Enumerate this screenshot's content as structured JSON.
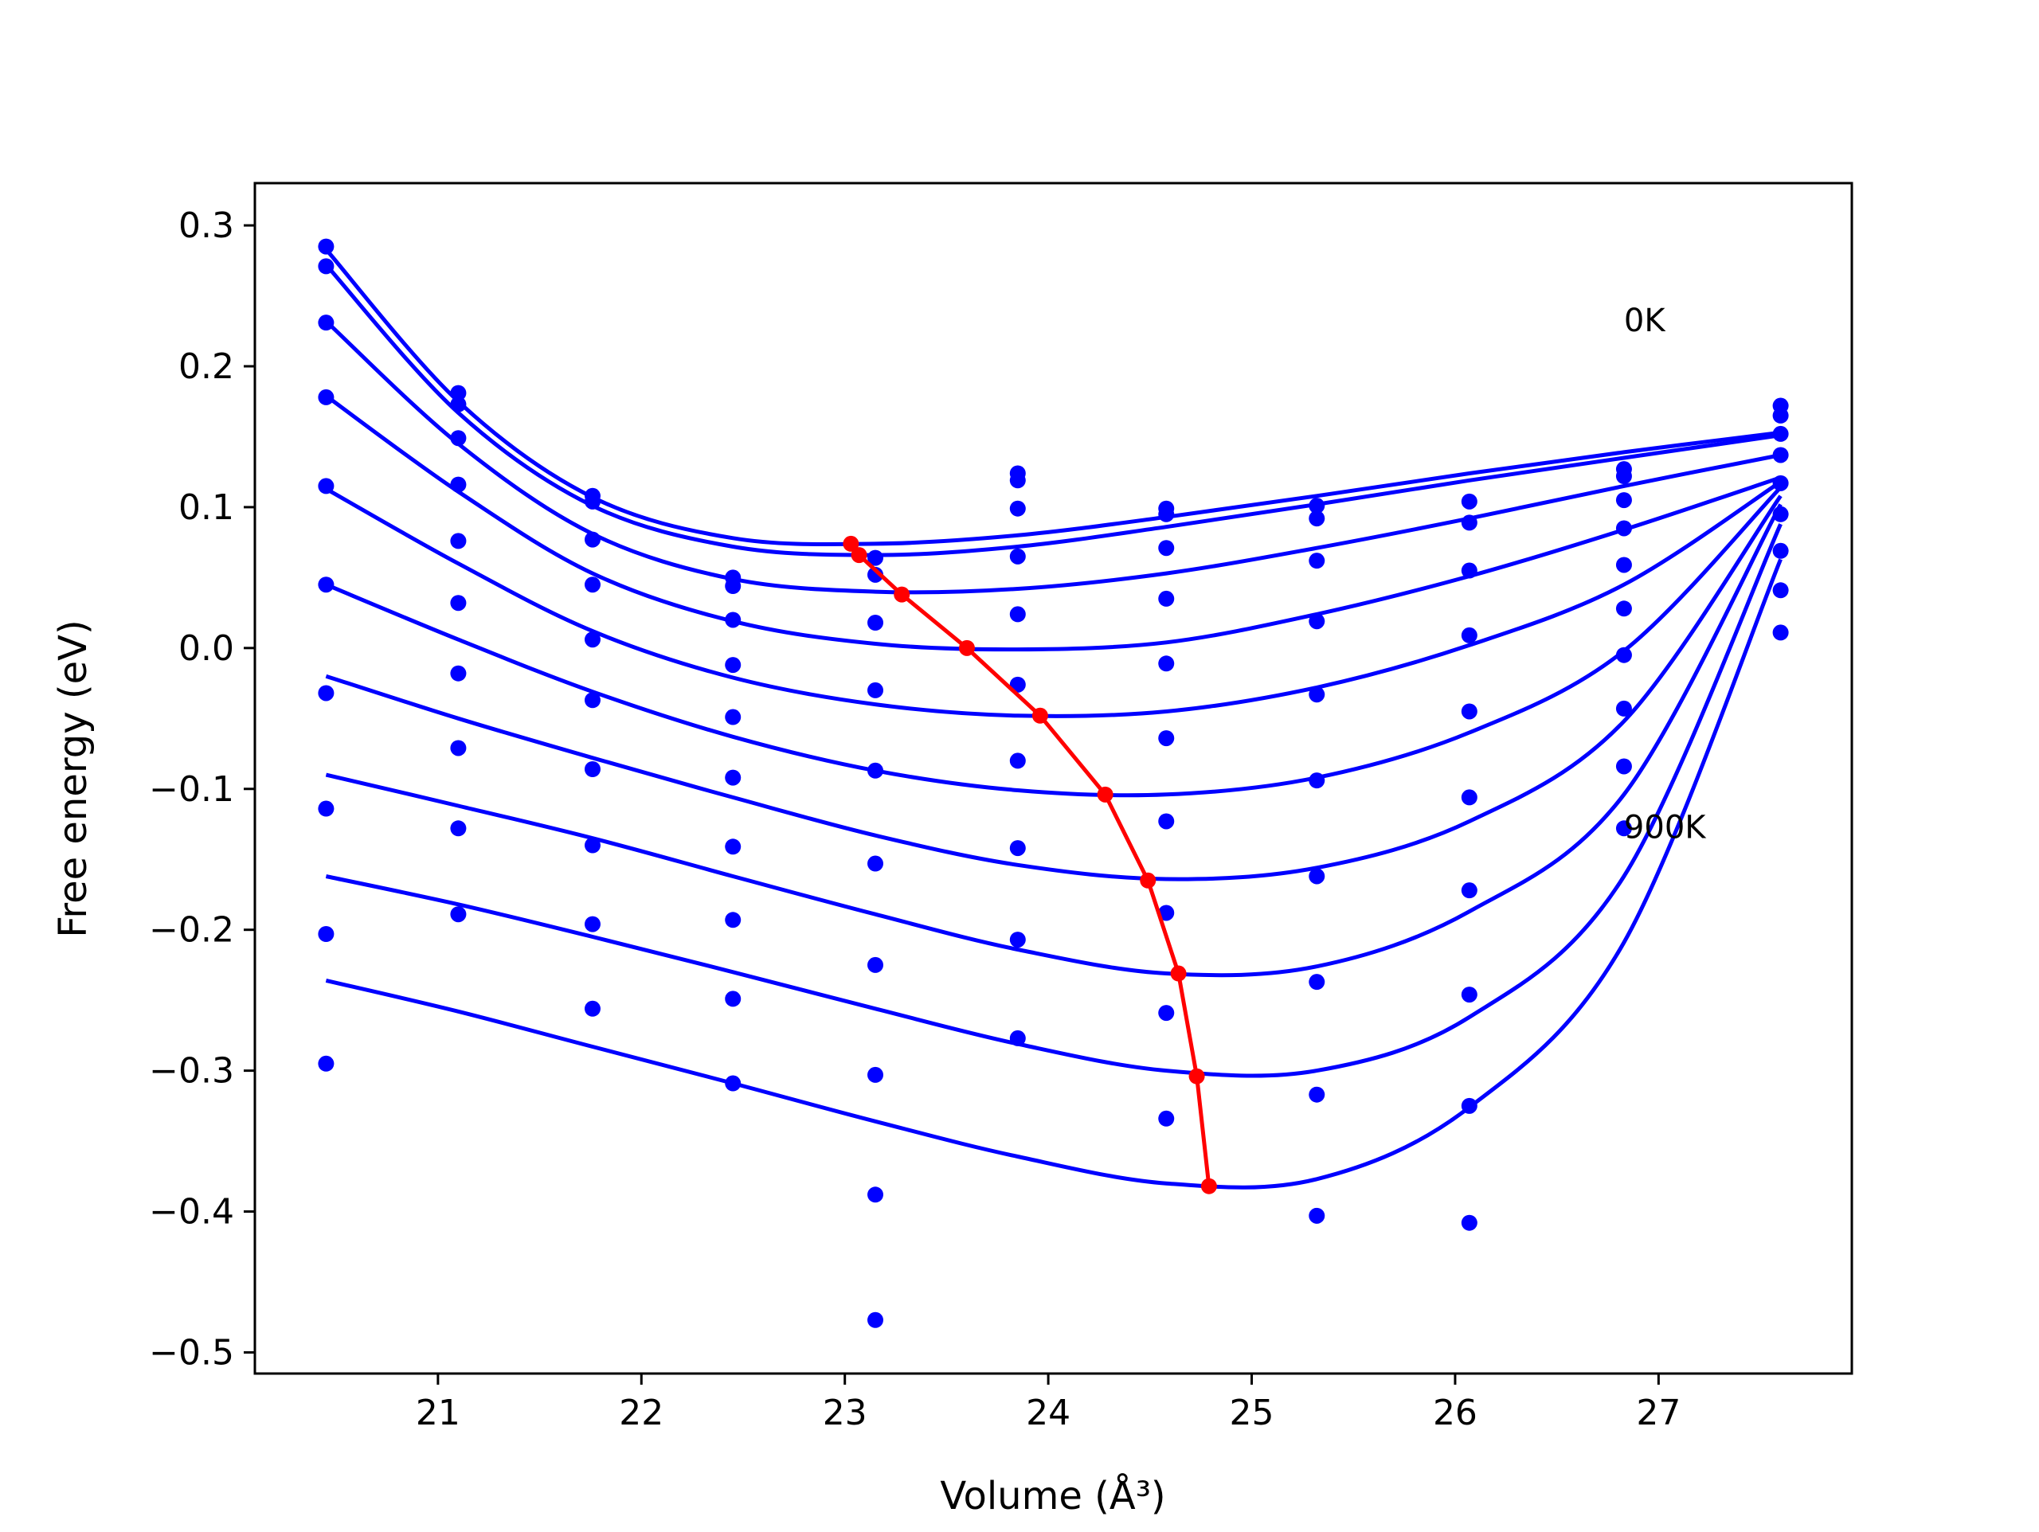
{
  "chart_data": {
    "type": "line",
    "xlabel": "Volume (Å³)",
    "ylabel": "Free energy (eV)",
    "xlim": [
      20.1,
      27.95
    ],
    "ylim": [
      -0.515,
      0.33
    ],
    "xticks": [
      21,
      22,
      23,
      24,
      25,
      26,
      27
    ],
    "yticks": [
      0.3,
      0.2,
      0.1,
      0.0,
      -0.1,
      -0.2,
      -0.3,
      -0.4,
      -0.5
    ],
    "xtick_labels": [
      "21",
      "22",
      "23",
      "24",
      "25",
      "26",
      "27"
    ],
    "ytick_labels": [
      "0.3",
      "0.2",
      "0.1",
      "0.0",
      "−0.1",
      "−0.2",
      "−0.3",
      "−0.4",
      "−0.5"
    ],
    "grid": false,
    "annotations": [
      {
        "text": "0K",
        "x": 26.83,
        "y": 0.225
      },
      {
        "text": "900K",
        "x": 26.83,
        "y": -0.135
      }
    ],
    "series_color": "#0000ff",
    "minimum_color": "#ff0000",
    "volumes": [
      20.45,
      21.1,
      21.76,
      22.45,
      23.15,
      23.85,
      24.58,
      25.32,
      26.07,
      26.83,
      27.6
    ],
    "series": [
      {
        "values": [
          0.285,
          0.181,
          0.108,
          0.05,
          0.064,
          0.124,
          0.099,
          0.101,
          0.104,
          0.127,
          0.172
        ]
      },
      {
        "values": [
          0.271,
          0.173,
          0.104,
          0.044,
          0.052,
          0.119,
          0.095,
          0.092,
          0.089,
          0.122,
          0.165
        ]
      },
      {
        "values": [
          0.231,
          0.149,
          0.077,
          0.02,
          0.018,
          0.099,
          0.071,
          0.062,
          0.055,
          0.105,
          0.152
        ]
      },
      {
        "values": [
          0.178,
          0.116,
          0.045,
          -0.012,
          -0.03,
          0.065,
          0.035,
          0.019,
          0.009,
          0.085,
          0.137
        ]
      },
      {
        "values": [
          0.115,
          0.076,
          0.006,
          -0.049,
          -0.087,
          0.024,
          -0.011,
          -0.033,
          -0.045,
          0.059,
          0.117
        ]
      },
      {
        "values": [
          0.045,
          0.032,
          -0.037,
          -0.092,
          -0.153,
          -0.026,
          -0.064,
          -0.094,
          -0.106,
          0.028,
          0.095
        ]
      },
      {
        "values": [
          -0.032,
          -0.018,
          -0.086,
          -0.141,
          -0.225,
          -0.08,
          -0.123,
          -0.162,
          -0.172,
          -0.005,
          0.069
        ]
      },
      {
        "values": [
          -0.114,
          -0.071,
          -0.14,
          -0.193,
          -0.303,
          -0.142,
          -0.188,
          -0.237,
          -0.246,
          -0.043,
          0.041
        ]
      },
      {
        "values": [
          -0.203,
          -0.128,
          -0.196,
          -0.249,
          -0.388,
          -0.207,
          -0.259,
          -0.317,
          -0.325,
          -0.084,
          0.011
        ]
      },
      {
        "values": [
          -0.295,
          -0.189,
          -0.256,
          -0.309,
          -0.477,
          -0.277,
          -0.334,
          -0.403,
          -0.408,
          -0.128,
          null
        ]
      }
    ],
    "fit_curves": [
      {
        "x": [
          20.45,
          21.1,
          21.76,
          22.45,
          23.15,
          23.85,
          24.58,
          25.32,
          26.07,
          26.83,
          27.6
        ],
        "y": [
          0.283,
          0.175,
          0.107,
          0.078,
          0.074,
          0.08,
          0.093,
          0.108,
          0.124,
          0.139,
          0.153
        ]
      },
      {
        "x": [
          20.45,
          21.1,
          21.76,
          22.45,
          23.15,
          23.85,
          24.58,
          25.32,
          26.07,
          26.83,
          27.6
        ],
        "y": [
          0.272,
          0.167,
          0.101,
          0.072,
          0.066,
          0.072,
          0.086,
          0.102,
          0.119,
          0.135,
          0.151
        ]
      },
      {
        "x": [
          20.45,
          21.1,
          21.76,
          22.45,
          23.15,
          23.85,
          24.58,
          25.32,
          26.07,
          26.83,
          27.6
        ],
        "y": [
          0.232,
          0.145,
          0.081,
          0.049,
          0.04,
          0.042,
          0.053,
          0.071,
          0.092,
          0.115,
          0.137
        ]
      },
      {
        "x": [
          20.45,
          21.1,
          21.76,
          22.45,
          23.15,
          23.85,
          24.58,
          25.32,
          26.07,
          26.83,
          27.6
        ],
        "y": [
          0.179,
          0.111,
          0.053,
          0.019,
          0.003,
          -0.001,
          0.004,
          0.024,
          0.051,
          0.084,
          0.121
        ]
      },
      {
        "x": [
          20.45,
          21.1,
          21.76,
          22.45,
          23.15,
          23.85,
          24.58,
          25.32,
          26.07,
          26.83,
          27.6
        ],
        "y": [
          0.113,
          0.06,
          0.012,
          -0.021,
          -0.04,
          -0.048,
          -0.045,
          -0.028,
          0.002,
          0.045,
          0.118
        ]
      },
      {
        "x": [
          20.45,
          21.1,
          21.76,
          22.45,
          23.15,
          23.85,
          24.58,
          25.32,
          26.07,
          26.83,
          27.6
        ],
        "y": [
          0.045,
          0.006,
          -0.031,
          -0.063,
          -0.087,
          -0.101,
          -0.104,
          -0.092,
          -0.06,
          -0.002,
          0.114
        ]
      },
      {
        "x": [
          20.45,
          21.1,
          21.76,
          22.45,
          23.15,
          23.85,
          24.58,
          25.32,
          26.07,
          26.83,
          27.6
        ],
        "y": [
          -0.02,
          -0.05,
          -0.078,
          -0.106,
          -0.133,
          -0.154,
          -0.164,
          -0.156,
          -0.123,
          -0.052,
          0.108
        ]
      },
      {
        "x": [
          20.45,
          21.1,
          21.76,
          22.45,
          23.15,
          23.85,
          24.58,
          25.32,
          26.07,
          26.83,
          27.6
        ],
        "y": [
          -0.09,
          -0.112,
          -0.135,
          -0.162,
          -0.189,
          -0.214,
          -0.231,
          -0.226,
          -0.187,
          -0.104,
          0.102
        ]
      },
      {
        "x": [
          20.45,
          21.1,
          21.76,
          22.45,
          23.15,
          23.85,
          24.58,
          25.32,
          26.07,
          26.83,
          27.6
        ],
        "y": [
          -0.162,
          -0.182,
          -0.205,
          -0.23,
          -0.256,
          -0.281,
          -0.3,
          -0.3,
          -0.262,
          -0.162,
          0.088
        ]
      },
      {
        "x": [
          20.45,
          21.1,
          21.76,
          22.45,
          23.15,
          23.85,
          24.58,
          25.32,
          26.07,
          26.83,
          27.6
        ],
        "y": [
          -0.236,
          -0.258,
          -0.283,
          -0.309,
          -0.336,
          -0.361,
          -0.38,
          -0.377,
          -0.326,
          -0.209,
          0.063
        ]
      }
    ],
    "minimum_path": {
      "x": [
        23.03,
        23.07,
        23.28,
        23.6,
        23.96,
        24.28,
        24.49,
        24.64,
        24.73,
        24.79
      ],
      "y": [
        0.074,
        0.066,
        0.038,
        0.0,
        -0.048,
        -0.104,
        -0.165,
        -0.231,
        -0.304,
        -0.382
      ]
    }
  }
}
